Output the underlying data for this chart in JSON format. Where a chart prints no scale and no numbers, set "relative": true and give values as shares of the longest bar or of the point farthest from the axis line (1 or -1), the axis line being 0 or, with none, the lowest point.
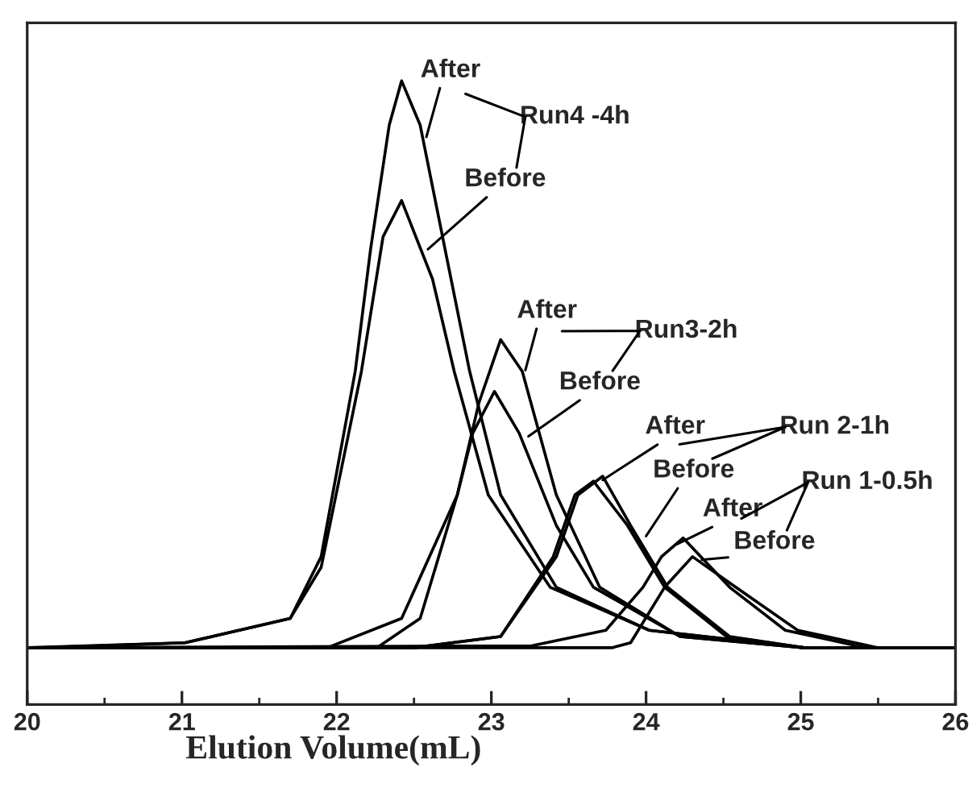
{
  "chart_data": {
    "type": "line",
    "relative": true,
    "xlabel": "Elution Volume(mL)",
    "xlim": [
      20,
      26
    ],
    "xticks": [
      20,
      {
        "value": 20.5,
        "label": null
      },
      21,
      {
        "value": 21.5,
        "label": null
      },
      22,
      {
        "value": 22.5,
        "label": null
      },
      23,
      {
        "value": 23.5,
        "label": null
      },
      24,
      {
        "value": 24.5,
        "label": null
      },
      25,
      {
        "value": 25.5,
        "label": null
      },
      26
    ],
    "tick_labels": "x",
    "series": [
      {
        "color": "#000000",
        "x": [
          20.0,
          21.02,
          21.7,
          21.9,
          22.12,
          22.22,
          22.34,
          22.42,
          22.54,
          22.7,
          22.86,
          23.06,
          23.42,
          24.02,
          25.02,
          26.0
        ],
        "values": [
          0.091,
          0.099,
          0.138,
          0.237,
          0.534,
          0.731,
          0.929,
          1.0,
          0.929,
          0.731,
          0.534,
          0.336,
          0.188,
          0.119,
          0.091,
          0.091
        ]
      },
      {
        "color": "#000000",
        "x": [
          20.1,
          21.02,
          21.7,
          21.9,
          22.16,
          22.3,
          22.42,
          22.62,
          22.76,
          22.98,
          23.38,
          24.02,
          25.02,
          25.9
        ],
        "values": [
          0.091,
          0.099,
          0.138,
          0.22,
          0.534,
          0.75,
          0.808,
          0.682,
          0.534,
          0.336,
          0.188,
          0.119,
          0.091,
          0.091
        ]
      },
      {
        "color": "#000000",
        "x": [
          20.0,
          21.94,
          22.42,
          22.78,
          22.92,
          23.06,
          23.2,
          23.42,
          23.7,
          24.22,
          25.02,
          26.0
        ],
        "values": [
          0.091,
          0.091,
          0.138,
          0.336,
          0.484,
          0.585,
          0.534,
          0.336,
          0.188,
          0.109,
          0.091,
          0.091
        ]
      },
      {
        "color": "#000000",
        "x": [
          20.1,
          22.26,
          22.54,
          22.78,
          22.88,
          23.02,
          23.18,
          23.42,
          23.66,
          24.22,
          25.02,
          25.9
        ],
        "values": [
          0.091,
          0.091,
          0.138,
          0.336,
          0.435,
          0.502,
          0.435,
          0.287,
          0.188,
          0.109,
          0.091,
          0.091
        ]
      },
      {
        "color": "#000000",
        "x": [
          20.0,
          22.5,
          23.06,
          23.42,
          23.56,
          23.72,
          23.9,
          24.14,
          24.54,
          25.02,
          26.0
        ],
        "values": [
          0.091,
          0.091,
          0.109,
          0.237,
          0.336,
          0.366,
          0.287,
          0.188,
          0.109,
          0.091,
          0.091
        ]
      },
      {
        "color": "#000000",
        "x": [
          20.1,
          22.5,
          23.06,
          23.4,
          23.54,
          23.66,
          23.88,
          24.12,
          24.52,
          25.02,
          25.9
        ],
        "values": [
          0.091,
          0.091,
          0.109,
          0.237,
          0.336,
          0.358,
          0.287,
          0.188,
          0.109,
          0.091,
          0.091
        ]
      },
      {
        "color": "#000000",
        "x": [
          20.0,
          23.26,
          23.74,
          23.98,
          24.1,
          24.24,
          24.54,
          24.9,
          25.42,
          26.0
        ],
        "values": [
          0.091,
          0.094,
          0.119,
          0.188,
          0.237,
          0.267,
          0.188,
          0.119,
          0.091,
          0.091
        ]
      },
      {
        "color": "#000000",
        "x": [
          20.1,
          23.78,
          23.9,
          24.12,
          24.3,
          24.58,
          24.98,
          25.5,
          25.9
        ],
        "values": [
          0.091,
          0.091,
          0.099,
          0.188,
          0.237,
          0.188,
          0.119,
          0.091,
          0.091
        ]
      }
    ],
    "annotations": [
      {
        "text": "After",
        "x": 22.58,
        "y": 0.91
      },
      "Run4 -4h",
      {
        "text": "Before",
        "x": 22.59,
        "y": 0.73
      },
      {
        "text": "After",
        "x": 23.22,
        "y": 0.536
      },
      "Run3-2h",
      {
        "text": "Before",
        "x": 23.24,
        "y": 0.43
      },
      {
        "text": "After",
        "x": 23.72,
        "y": 0.36
      },
      "Run 2-1h",
      {
        "text": "Before",
        "x": 24.0,
        "y": 0.27
      },
      "Run 1-0.5h",
      {
        "text": "After",
        "x": 24.2,
        "y": 0.257
      },
      {
        "text": "Before",
        "x": 24.36,
        "y": 0.232
      }
    ]
  }
}
